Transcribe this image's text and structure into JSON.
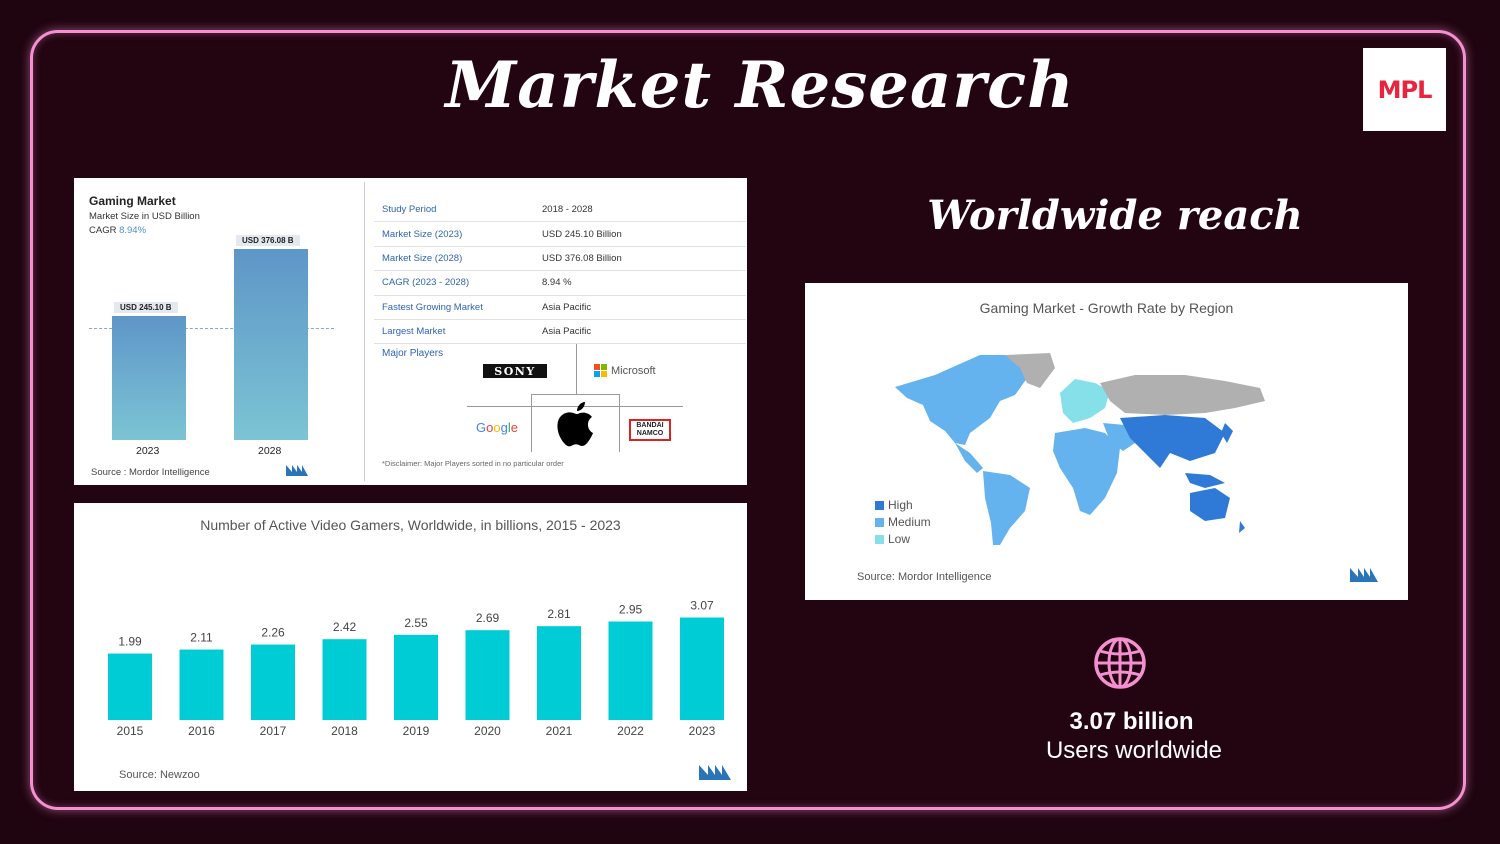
{
  "slide": {
    "title": "Market Research",
    "logo_text": "MPL",
    "right_title": "Worldwide reach",
    "users_count": "3.07 billion",
    "users_label": "Users worldwide"
  },
  "market_panel": {
    "title": "Gaming Market",
    "subtitle": "Market Size in USD Billion",
    "cagr_label": "CAGR",
    "cagr_value": "8.94%",
    "source": "Source : Mordor Intelligence",
    "stats": [
      {
        "key": "Study Period",
        "value": "2018 - 2028"
      },
      {
        "key": "Market Size (2023)",
        "value": "USD 245.10 Billion"
      },
      {
        "key": "Market Size (2028)",
        "value": "USD 376.08 Billion"
      },
      {
        "key": "CAGR (2023 - 2028)",
        "value": "8.94 %"
      },
      {
        "key": "Fastest Growing Market",
        "value": "Asia Pacific"
      },
      {
        "key": "Largest Market",
        "value": "Asia Pacific"
      }
    ],
    "major_players_label": "Major Players",
    "players": {
      "sony": "SONY",
      "microsoft": "Microsoft",
      "google": "Google",
      "bandai_line1": "BANDAI",
      "bandai_line2": "NAMCO"
    },
    "disclaimer": "*Disclaimer: Major Players sorted in no particular order"
  },
  "chart_data": [
    {
      "type": "bar",
      "title": "Gaming Market",
      "categories": [
        "2023",
        "2028"
      ],
      "values": [
        245.1,
        376.08
      ],
      "value_labels": [
        "USD 245.10 B",
        "USD 376.08 B"
      ],
      "ylabel": "Market Size in USD Billion",
      "ylim": [
        0,
        400
      ]
    },
    {
      "type": "bar",
      "title": "Number of Active Video Gamers, Worldwide, in billions, 2015 - 2023",
      "categories": [
        "2015",
        "2016",
        "2017",
        "2018",
        "2019",
        "2020",
        "2021",
        "2022",
        "2023"
      ],
      "values": [
        1.99,
        2.11,
        2.26,
        2.42,
        2.55,
        2.69,
        2.81,
        2.95,
        3.07
      ],
      "color": "#00ccd6",
      "source": "Source:  Newzoo"
    }
  ],
  "map_panel": {
    "title": "Gaming Market - Growth Rate by Region",
    "legend": [
      {
        "label": "High",
        "color": "#2f7ad6"
      },
      {
        "label": "Medium",
        "color": "#65b3ee"
      },
      {
        "label": "Low",
        "color": "#86e0ea"
      }
    ],
    "source": "Source:  Mordor Intelligence"
  },
  "colors": {
    "background": "#220511",
    "frame": "#f58fd0",
    "bar_cyan": "#00ccd6",
    "globe_pink": "#f58fd0"
  }
}
